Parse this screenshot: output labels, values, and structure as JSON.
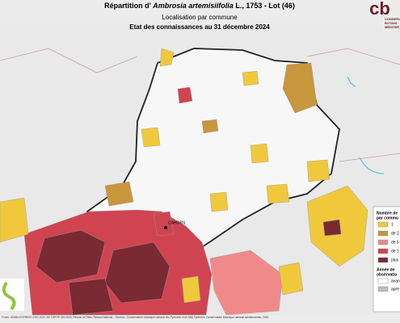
{
  "header": {
    "title_prefix": "Répartition d'",
    "title_species": "Ambrosia artemisiifolia",
    "title_suffix": "L., 1753 - Lot (46)",
    "subtitle": "Localisation par commune",
    "date_line": "Etat des connaissances au 31 décembre 2024"
  },
  "logo": {
    "mark": "cb",
    "lines": [
      "CONSERV",
      "BOTANI",
      "MÉDITER"
    ]
  },
  "place": "CAHORS",
  "legend": {
    "title": [
      "Nombre de",
      "par commu"
    ],
    "items": [
      {
        "label": "1",
        "color": "#f0c83c"
      },
      {
        "label": "de 2",
        "color": "#c8963c"
      },
      {
        "label": "de 6",
        "color": "#f08a8a"
      },
      {
        "label": "de 1",
        "color": "#d04452"
      },
      {
        "label": "plus",
        "color": "#7a2a32"
      }
    ],
    "year_title": [
      "Année de",
      "observatio"
    ],
    "years": [
      {
        "label": "avan",
        "color": "#ffffff"
      },
      {
        "label": "aprè",
        "color": "#bdbdbd"
      }
    ]
  },
  "footer": "Fonds : ADMIN EXPRESS COG 2020, BD TOPO® IGN 2020, Réseau de Sites, Réseau National... Sources : Conservatoire botanique national des Pyrénées et de Midi-Pyrénées, Conservatoire botanique national méditerranéen, 2024"
}
